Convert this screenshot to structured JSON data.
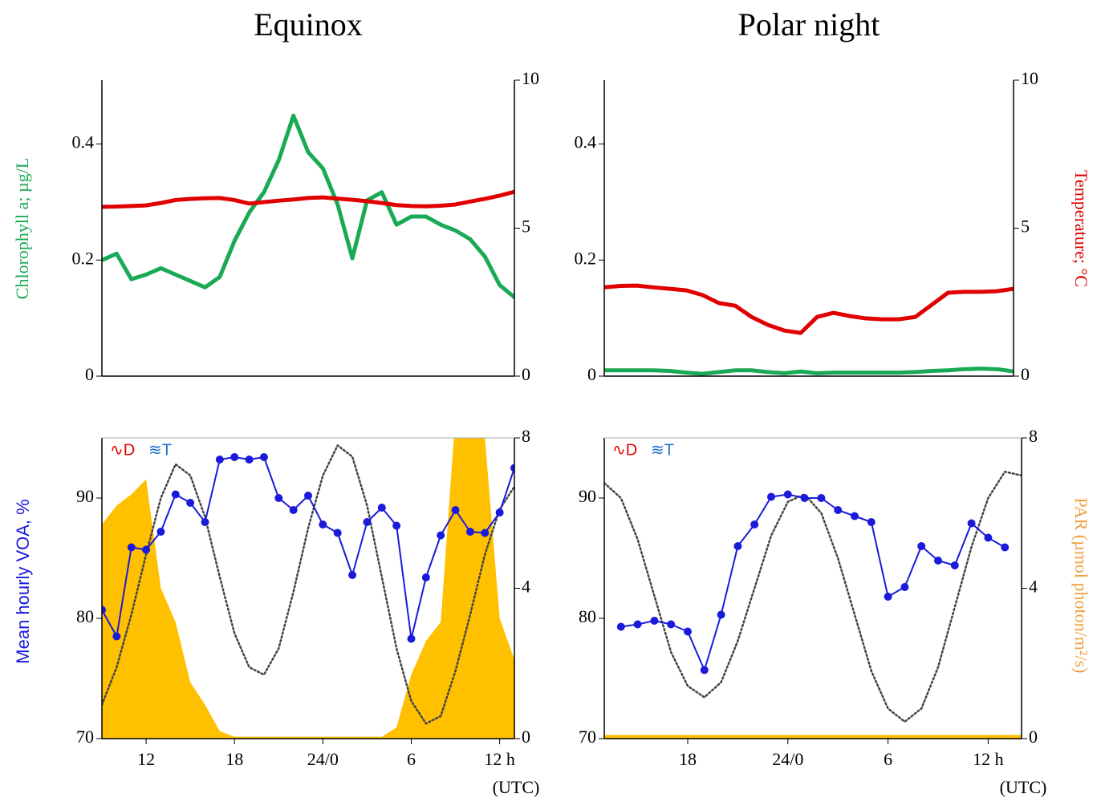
{
  "chart_data": [
    {
      "type": "line",
      "title": "Equinox",
      "ylabel": "Chlorophyll a; µg/L",
      "ylabel_color": "#1aaa55",
      "x": [
        9,
        10,
        11,
        12,
        13,
        14,
        15,
        16,
        17,
        18,
        19,
        20,
        21,
        22,
        23,
        24,
        25,
        26,
        27,
        28,
        29,
        30,
        31,
        32,
        33,
        34,
        35,
        36,
        37
      ],
      "xlim": [
        9,
        37
      ],
      "ylim": [
        0,
        0.51
      ],
      "yticks": [
        0,
        0.2,
        0.4
      ],
      "y2lim": [
        0,
        10
      ],
      "y2ticks": [
        0,
        5,
        10
      ],
      "series": [
        {
          "color": "#1aaa55",
          "values": [
            0.2,
            0.211,
            0.167,
            0.175,
            0.186,
            0.175,
            0.164,
            0.153,
            0.171,
            0.233,
            0.282,
            0.317,
            0.372,
            0.449,
            0.386,
            0.358,
            0.296,
            0.203,
            0.303,
            0.317,
            0.261,
            0.275,
            0.275,
            0.261,
            0.251,
            0.236,
            0.206,
            0.157,
            0.136
          ]
        },
        {
          "color": "#e00000",
          "axis": "y2",
          "values": [
            5.72,
            5.73,
            5.75,
            5.77,
            5.85,
            5.95,
            5.99,
            6.01,
            6.02,
            5.95,
            5.83,
            5.88,
            5.93,
            5.97,
            6.02,
            6.04,
            6.0,
            5.96,
            5.91,
            5.85,
            5.78,
            5.75,
            5.74,
            5.76,
            5.8,
            5.9,
            5.99,
            6.1,
            6.23
          ]
        }
      ]
    },
    {
      "type": "line",
      "title": "Polar night",
      "y2label": "Temperature; °C",
      "y2label_color": "#e00000",
      "x": [
        13,
        14,
        15,
        16,
        17,
        18,
        19,
        20,
        21,
        22,
        23,
        24,
        25,
        26,
        27,
        28,
        29,
        30,
        31,
        32,
        33,
        34,
        35,
        36,
        37,
        38
      ],
      "xlim": [
        13,
        38
      ],
      "ylim": [
        0,
        0.51
      ],
      "yticks": [
        0,
        0.2,
        0.4
      ],
      "y2lim": [
        0,
        10
      ],
      "y2ticks": [
        0,
        5,
        10
      ],
      "series": [
        {
          "color": "#1aaa55",
          "values": [
            0.01,
            0.01,
            0.01,
            0.01,
            0.009,
            0.006,
            0.004,
            0.007,
            0.01,
            0.01,
            0.007,
            0.005,
            0.008,
            0.005,
            0.006,
            0.006,
            0.006,
            0.006,
            0.006,
            0.007,
            0.009,
            0.01,
            0.012,
            0.013,
            0.012,
            0.008
          ]
        },
        {
          "color": "#e00000",
          "axis": "y2",
          "values": [
            3.0,
            3.05,
            3.06,
            3.0,
            2.95,
            2.9,
            2.74,
            2.47,
            2.38,
            2.0,
            1.73,
            1.54,
            1.46,
            2.0,
            2.14,
            2.03,
            1.95,
            1.92,
            1.92,
            2.0,
            2.41,
            2.82,
            2.85,
            2.85,
            2.87,
            2.95
          ]
        }
      ]
    },
    {
      "type": "line",
      "ylabel": "Mean hourly VOA, %",
      "ylabel_color": "#1a1adb",
      "xlabel": "(UTC)",
      "annotations": [
        {
          "text": "∿D",
          "color": "#e00000"
        },
        {
          "text": "≋T",
          "color": "#1a6fd0"
        }
      ],
      "x": [
        9,
        10,
        11,
        12,
        13,
        14,
        15,
        16,
        17,
        18,
        19,
        20,
        21,
        22,
        23,
        24,
        25,
        26,
        27,
        28,
        29,
        30,
        31,
        32,
        33,
        34,
        35,
        36,
        37
      ],
      "xlim": [
        9,
        37
      ],
      "xticks": [
        12,
        18,
        {
          "value": 24,
          "label": "24/0"
        },
        {
          "value": 30,
          "label": "6"
        },
        {
          "value": 36,
          "label": "12 h"
        }
      ],
      "ylim": [
        70,
        95
      ],
      "yticks": [
        70,
        80,
        90
      ],
      "y2lim": [
        0,
        8
      ],
      "y2ticks": [
        0,
        4,
        8
      ],
      "series": [
        {
          "color": "#ffc000",
          "axis": "y2",
          "style": "area",
          "values": [
            5.7,
            6.2,
            6.5,
            6.9,
            4.0,
            3.1,
            1.5,
            0.9,
            0.2,
            0.05,
            0.05,
            0.05,
            0.05,
            0.05,
            0.05,
            0.05,
            0.05,
            0.05,
            0.05,
            0.05,
            0.3,
            1.7,
            2.6,
            3.1,
            8.6,
            8.6,
            8.0,
            3.2,
            2.1
          ]
        },
        {
          "color": "#444444",
          "axis": "y2",
          "style": "dotted",
          "values": [
            0.9,
            1.9,
            3.3,
            4.9,
            6.4,
            7.3,
            7.0,
            5.9,
            4.3,
            2.8,
            1.9,
            1.7,
            2.4,
            3.9,
            5.6,
            7.0,
            7.8,
            7.5,
            6.2,
            4.3,
            2.4,
            1.0,
            0.4,
            0.6,
            1.8,
            3.3,
            4.9,
            6.1,
            6.7
          ]
        },
        {
          "color": "#1a1adb",
          "style": "markers",
          "values": [
            80.7,
            78.5,
            85.9,
            85.7,
            87.2,
            90.3,
            89.6,
            88.0,
            93.2,
            93.4,
            93.2,
            93.4,
            90.0,
            89.0,
            90.2,
            87.8,
            87.1,
            83.6,
            88.0,
            89.2,
            87.7,
            78.3,
            83.4,
            86.9,
            89.0,
            87.2,
            87.1,
            88.8,
            92.5
          ]
        }
      ]
    },
    {
      "type": "line",
      "y2label": "PAR (µmol photon/m²/s)",
      "y2label_color": "#f0a040",
      "xlabel": "(UTC)",
      "annotations": [
        {
          "text": "∿D",
          "color": "#e00000"
        },
        {
          "text": "≋T",
          "color": "#1a6fd0"
        }
      ],
      "x": [
        13,
        14,
        15,
        16,
        17,
        18,
        19,
        20,
        21,
        22,
        23,
        24,
        25,
        26,
        27,
        28,
        29,
        30,
        31,
        32,
        33,
        34,
        35,
        36,
        37,
        38
      ],
      "xlim": [
        13,
        38
      ],
      "xticks": [
        18,
        {
          "value": 24,
          "label": "24/0"
        },
        {
          "value": 30,
          "label": "6"
        },
        {
          "value": 36,
          "label": "12 h"
        }
      ],
      "ylim": [
        70,
        95
      ],
      "yticks": [
        70,
        80,
        90
      ],
      "y2lim": [
        0,
        8
      ],
      "y2ticks": [
        0,
        4,
        8
      ],
      "series": [
        {
          "color": "#ffc000",
          "axis": "y2",
          "style": "area",
          "values": [
            0.1,
            0.1,
            0.1,
            0.1,
            0.1,
            0.1,
            0.1,
            0.1,
            0.1,
            0.1,
            0.1,
            0.1,
            0.1,
            0.1,
            0.1,
            0.1,
            0.1,
            0.1,
            0.1,
            0.1,
            0.1,
            0.1,
            0.1,
            0.1,
            0.1,
            0.1
          ]
        },
        {
          "color": "#444444",
          "axis": "y2",
          "style": "dotted",
          "values": [
            6.8,
            6.4,
            5.3,
            3.8,
            2.3,
            1.4,
            1.1,
            1.5,
            2.6,
            4.0,
            5.4,
            6.3,
            6.5,
            6.0,
            4.8,
            3.3,
            1.8,
            0.8,
            0.45,
            0.8,
            1.9,
            3.5,
            5.1,
            6.4,
            7.1,
            7.0
          ]
        },
        {
          "color": "#1a1adb",
          "style": "markers",
          "values": [
            null,
            79.3,
            79.5,
            79.8,
            79.5,
            78.9,
            75.7,
            80.3,
            86.0,
            87.8,
            90.1,
            90.3,
            90.0,
            90.0,
            89.0,
            88.5,
            88.0,
            81.8,
            82.6,
            86.0,
            84.8,
            84.4,
            87.9,
            86.7,
            85.9,
            null
          ]
        }
      ]
    }
  ]
}
